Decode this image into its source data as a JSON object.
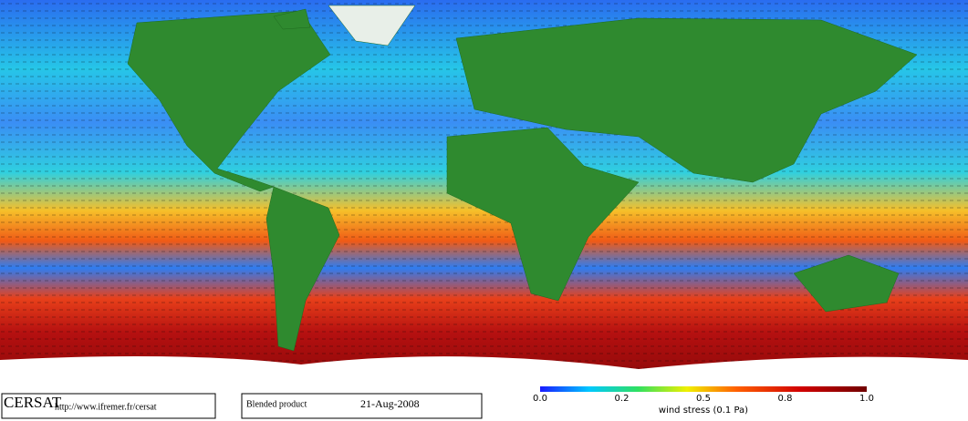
{
  "footer": {
    "logo": "CERSAT",
    "url": "http://www.ifremer.fr/cersat",
    "product": "Blended product",
    "date": "21-Aug-2008"
  },
  "colorbar": {
    "ticks": [
      "0.0",
      "0.2",
      "0.5",
      "0.8",
      "1.0"
    ],
    "label": "wind stress (0.1 Pa)"
  }
}
